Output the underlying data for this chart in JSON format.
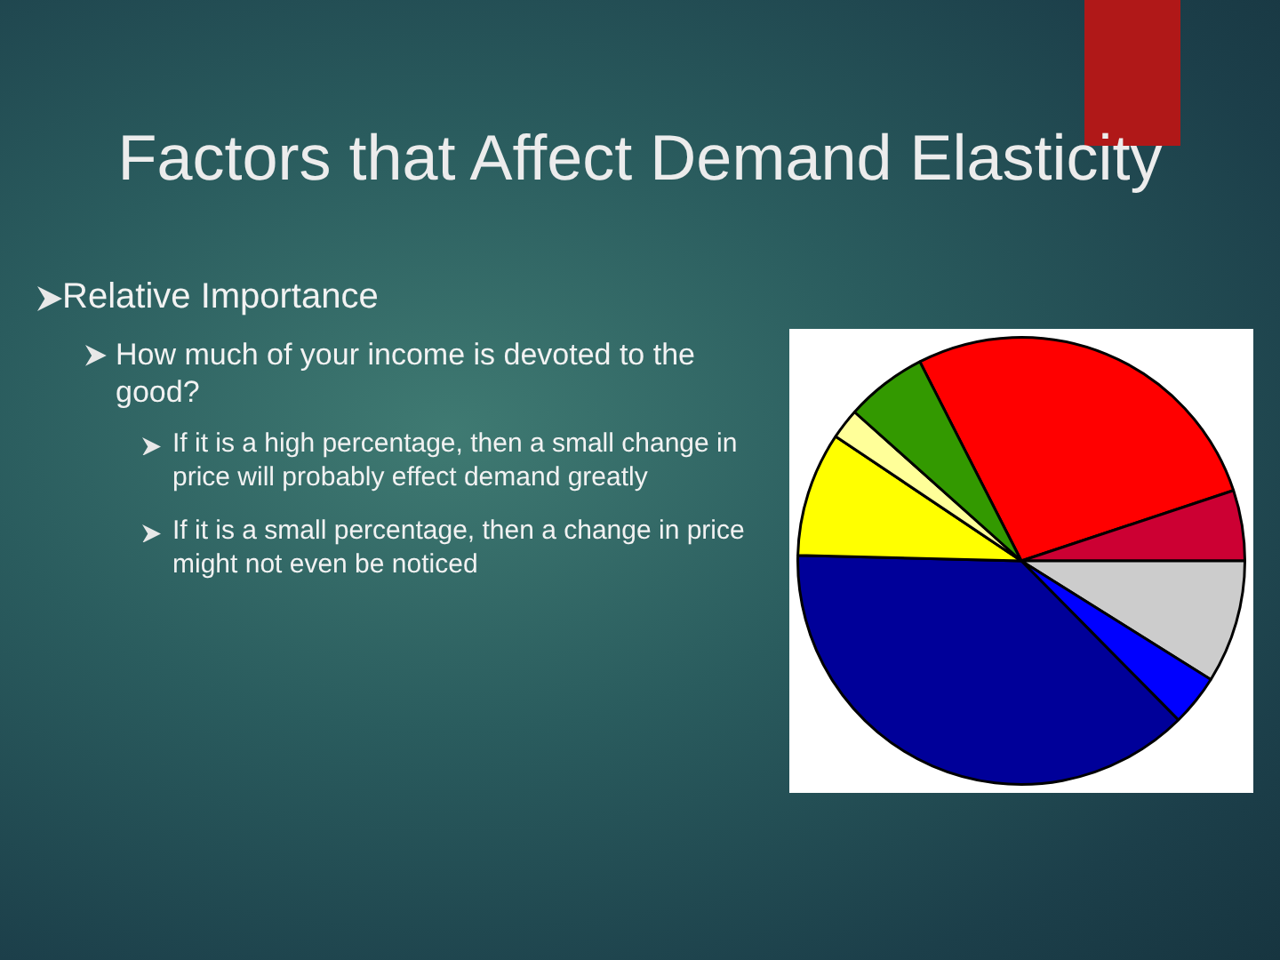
{
  "chart_data": {
    "type": "pie",
    "title": "Factors that Affect Demand Elasticity",
    "annotations": [
      "Relative Importance",
      "How much of your income is devoted to the good?",
      "If it is a high percentage, then a small change in price will probably effect demand greatly",
      "If it is a small percentage, then a change in price might not even be noticed"
    ],
    "categories": [
      null,
      null,
      null,
      null,
      null,
      null,
      null,
      null
    ],
    "values": [
      27.4,
      5.1,
      8.9,
      3.7,
      37.8,
      9.0,
      2.2,
      5.9
    ],
    "colors": [
      "#ff0000",
      "#cc0033",
      "#cccccc",
      "#0000ff",
      "#000099",
      "#ffff00",
      "#ffff99",
      "#339900"
    ],
    "legend": false
  }
}
